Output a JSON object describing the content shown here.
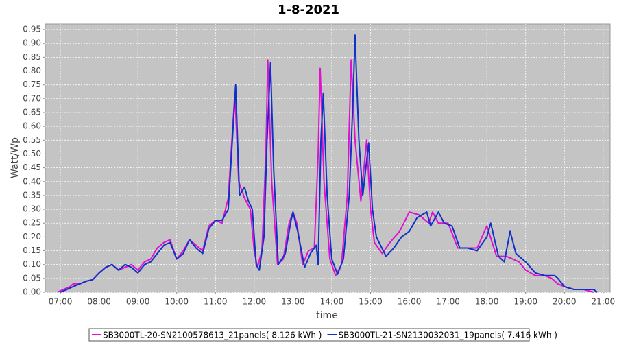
{
  "chart_data": {
    "type": "line",
    "title": "1-8-2021",
    "x_label": "time",
    "y_label": "Watt/Wp",
    "xlim": [
      6.61,
      21.18
    ],
    "ylim": [
      0,
      0.97
    ],
    "grid": true,
    "legend": "bottom",
    "xticks": [
      {
        "value": 7,
        "label": "07:00"
      },
      {
        "value": 8,
        "label": "08:00"
      },
      {
        "value": 9,
        "label": "09:00"
      },
      {
        "value": 10,
        "label": "10:00"
      },
      {
        "value": 11,
        "label": "11:00"
      },
      {
        "value": 12,
        "label": "12:00"
      },
      {
        "value": 13,
        "label": "13:00"
      },
      {
        "value": 14,
        "label": "14:00"
      },
      {
        "value": 15,
        "label": "15:00"
      },
      {
        "value": 16,
        "label": "16:00"
      },
      {
        "value": 17,
        "label": "17:00"
      },
      {
        "value": 18,
        "label": "18:00"
      },
      {
        "value": 19,
        "label": "19:00"
      },
      {
        "value": 20,
        "label": "20:00"
      },
      {
        "value": 21,
        "label": "21:00"
      }
    ],
    "yticks": [
      {
        "value": 0,
        "label": "0.00"
      },
      0.05,
      {
        "value": 0.1,
        "label": "0.10"
      },
      0.15,
      {
        "value": 0.2,
        "label": "0.20"
      },
      0.25,
      {
        "value": 0.3,
        "label": "0.30"
      },
      0.35,
      {
        "value": 0.4,
        "label": "0.40"
      },
      0.45,
      {
        "value": 0.5,
        "label": "0.50"
      },
      0.55,
      {
        "value": 0.6,
        "label": "0.60"
      },
      0.65,
      {
        "value": 0.7,
        "label": "0.70"
      },
      0.75,
      {
        "value": 0.8,
        "label": "0.80"
      },
      0.85,
      {
        "value": 0.9,
        "label": "0.90"
      },
      0.95
    ],
    "series": [
      {
        "name": "SB3000TL-20-SN2100578613_21panels( 8.126 kWh )",
        "color": "#e010d0",
        "x": [
          6.92,
          7.08,
          7.25,
          7.33,
          7.5,
          7.67,
          7.83,
          8.0,
          8.17,
          8.33,
          8.5,
          8.67,
          8.83,
          9.0,
          9.17,
          9.33,
          9.5,
          9.67,
          9.83,
          10.0,
          10.17,
          10.33,
          10.5,
          10.67,
          10.83,
          11.0,
          11.17,
          11.33,
          11.5,
          11.6,
          11.75,
          11.9,
          12.0,
          12.08,
          12.2,
          12.3,
          12.35,
          12.45,
          12.6,
          12.75,
          12.9,
          13.0,
          13.1,
          13.25,
          13.4,
          13.55,
          13.65,
          13.7,
          13.8,
          13.95,
          14.1,
          14.25,
          14.4,
          14.5,
          14.6,
          14.75,
          14.9,
          15.0,
          15.1,
          15.3,
          15.5,
          15.75,
          16.0,
          16.25,
          16.5,
          16.6,
          16.75,
          17.0,
          17.25,
          17.5,
          17.75,
          18.0,
          18.25,
          18.5,
          18.67,
          18.83,
          19.0,
          19.25,
          19.5,
          19.67,
          19.83,
          20.0,
          20.25,
          20.5,
          20.75
        ],
        "values": [
          0.0,
          0.01,
          0.02,
          0.03,
          0.03,
          0.04,
          0.045,
          0.07,
          0.09,
          0.1,
          0.08,
          0.09,
          0.1,
          0.08,
          0.11,
          0.12,
          0.16,
          0.18,
          0.19,
          0.12,
          0.15,
          0.19,
          0.17,
          0.15,
          0.24,
          0.26,
          0.25,
          0.34,
          0.72,
          0.4,
          0.34,
          0.3,
          0.15,
          0.09,
          0.15,
          0.5,
          0.84,
          0.4,
          0.1,
          0.12,
          0.25,
          0.29,
          0.25,
          0.1,
          0.15,
          0.16,
          0.5,
          0.81,
          0.4,
          0.12,
          0.06,
          0.1,
          0.35,
          0.84,
          0.55,
          0.33,
          0.55,
          0.3,
          0.18,
          0.14,
          0.18,
          0.22,
          0.29,
          0.28,
          0.25,
          0.29,
          0.25,
          0.25,
          0.16,
          0.16,
          0.16,
          0.24,
          0.13,
          0.13,
          0.12,
          0.11,
          0.08,
          0.06,
          0.06,
          0.05,
          0.03,
          0.02,
          0.01,
          0.01,
          0.0
        ]
      },
      {
        "name": "SB3000TL-21-SN2130032031_19panels( 7.416 kWh )",
        "color": "#1030c8",
        "x": [
          7.0,
          7.17,
          7.33,
          7.5,
          7.67,
          7.83,
          8.0,
          8.17,
          8.33,
          8.5,
          8.67,
          8.83,
          9.0,
          9.17,
          9.33,
          9.5,
          9.67,
          9.83,
          10.0,
          10.17,
          10.33,
          10.5,
          10.67,
          10.83,
          11.0,
          11.17,
          11.33,
          11.52,
          11.62,
          11.75,
          11.85,
          11.95,
          12.05,
          12.13,
          12.25,
          12.33,
          12.42,
          12.5,
          12.62,
          12.8,
          12.95,
          13.0,
          13.12,
          13.3,
          13.45,
          13.6,
          13.65,
          13.72,
          13.78,
          13.88,
          14.0,
          14.15,
          14.3,
          14.45,
          14.55,
          14.6,
          14.7,
          14.8,
          14.95,
          15.05,
          15.15,
          15.4,
          15.6,
          15.8,
          16.0,
          16.2,
          16.45,
          16.55,
          16.75,
          16.9,
          17.1,
          17.3,
          17.5,
          17.75,
          18.0,
          18.1,
          18.3,
          18.45,
          18.6,
          18.75,
          19.0,
          19.25,
          19.5,
          19.75,
          19.83,
          20.0,
          20.25,
          20.5,
          20.75,
          20.85
        ],
        "values": [
          0.0,
          0.01,
          0.02,
          0.03,
          0.04,
          0.045,
          0.07,
          0.09,
          0.1,
          0.08,
          0.1,
          0.09,
          0.07,
          0.1,
          0.11,
          0.14,
          0.17,
          0.18,
          0.12,
          0.14,
          0.19,
          0.16,
          0.14,
          0.23,
          0.26,
          0.26,
          0.3,
          0.75,
          0.35,
          0.38,
          0.33,
          0.3,
          0.1,
          0.08,
          0.2,
          0.55,
          0.83,
          0.45,
          0.1,
          0.14,
          0.26,
          0.29,
          0.22,
          0.09,
          0.14,
          0.17,
          0.1,
          0.55,
          0.72,
          0.35,
          0.12,
          0.065,
          0.12,
          0.35,
          0.7,
          0.93,
          0.55,
          0.35,
          0.54,
          0.3,
          0.2,
          0.13,
          0.16,
          0.2,
          0.22,
          0.27,
          0.29,
          0.24,
          0.29,
          0.25,
          0.24,
          0.16,
          0.16,
          0.15,
          0.2,
          0.25,
          0.13,
          0.11,
          0.22,
          0.14,
          0.11,
          0.07,
          0.06,
          0.06,
          0.05,
          0.02,
          0.01,
          0.01,
          0.01,
          0.0
        ]
      }
    ]
  }
}
